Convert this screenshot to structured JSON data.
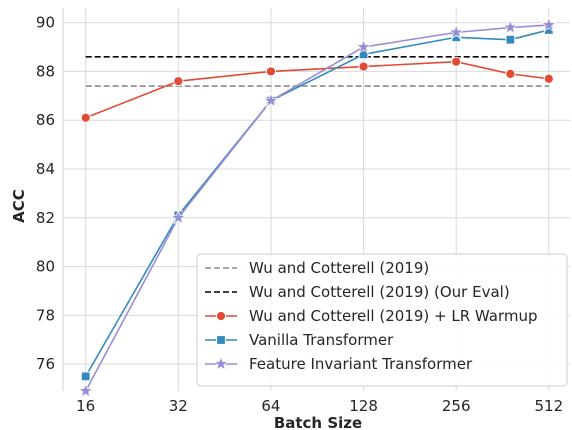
{
  "chart_data": {
    "type": "line",
    "xlabel": "Batch Size",
    "ylabel": "ACC",
    "x_scale": "log2",
    "x": [
      16,
      32,
      64,
      128,
      256,
      384,
      512
    ],
    "xticks": [
      16,
      32,
      64,
      128,
      256,
      512
    ],
    "xtick_labels": [
      "16",
      "32",
      "64",
      "128",
      "256",
      "512"
    ],
    "yticks": [
      76,
      78,
      80,
      82,
      84,
      86,
      88,
      90
    ],
    "ytick_labels": [
      "76",
      "78",
      "80",
      "82",
      "84",
      "86",
      "88",
      "90"
    ],
    "xlim": [
      13.5,
      600
    ],
    "ylim": [
      74.9,
      90.6
    ],
    "grid": true,
    "legend_position": "lower-right",
    "series": [
      {
        "name": "Wu and Cotterell (2019)",
        "style": "dashed",
        "color": "#8c8c8c",
        "marker": "none",
        "values": [
          87.4,
          87.4,
          87.4,
          87.4,
          87.4,
          87.4,
          87.4
        ]
      },
      {
        "name": "Wu and Cotterell (2019) (Our Eval)",
        "style": "dashed",
        "color": "#000000",
        "marker": "none",
        "values": [
          88.6,
          88.6,
          88.6,
          88.6,
          88.6,
          88.6,
          88.6
        ]
      },
      {
        "name": "Wu and Cotterell (2019) + LR Warmup",
        "style": "solid",
        "color": "#e24a33",
        "marker": "circle",
        "values": [
          86.1,
          87.6,
          88.0,
          88.2,
          88.4,
          87.9,
          87.7
        ]
      },
      {
        "name": "Vanilla Transformer",
        "style": "solid",
        "color": "#348abd",
        "marker": "square",
        "values": [
          75.5,
          82.1,
          86.8,
          88.7,
          89.4,
          89.3,
          89.7
        ]
      },
      {
        "name": "Feature Invariant Transformer",
        "style": "solid",
        "color": "#988ed5",
        "marker": "star",
        "values": [
          74.9,
          82.0,
          86.8,
          89.0,
          89.6,
          89.8,
          89.9
        ]
      }
    ]
  }
}
